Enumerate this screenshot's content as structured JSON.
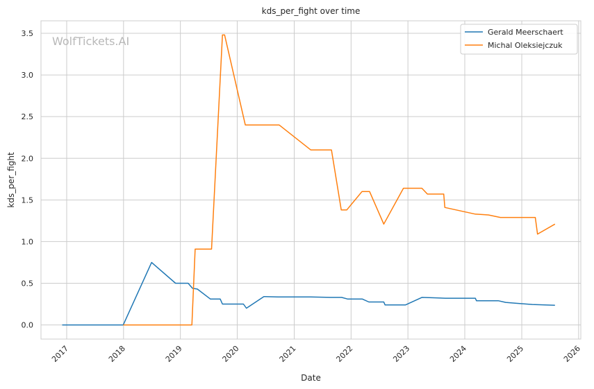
{
  "chart_data": {
    "type": "line",
    "title": "kds_per_fight over time",
    "xlabel": "Date",
    "ylabel": "kds_per_fight",
    "watermark": "WolfTickets.AI",
    "x_axis_type": "date",
    "xlim": [
      "2016-07-20",
      "2026-01-15"
    ],
    "ylim": [
      -0.17,
      3.65
    ],
    "x_ticks": [
      "2017-01-01",
      "2018-01-01",
      "2019-01-01",
      "2020-01-01",
      "2021-01-01",
      "2022-01-01",
      "2023-01-01",
      "2024-01-01",
      "2025-01-01",
      "2026-01-01"
    ],
    "x_tick_labels": [
      "2017",
      "2018",
      "2019",
      "2020",
      "2021",
      "2022",
      "2023",
      "2024",
      "2025",
      "2026"
    ],
    "x_tick_rotation": 45,
    "y_ticks": [
      0.0,
      0.5,
      1.0,
      1.5,
      2.0,
      2.5,
      3.0,
      3.5
    ],
    "y_tick_labels": [
      "0.0",
      "0.5",
      "1.0",
      "1.5",
      "2.0",
      "2.5",
      "3.0",
      "3.5"
    ],
    "grid": true,
    "legend_position": "top-right",
    "series": [
      {
        "name": "Gerald Meerschaert",
        "color": "#1f77b4",
        "points": [
          [
            "2016-12-03",
            0.0
          ],
          [
            "2017-12-30",
            0.0
          ],
          [
            "2018-06-30",
            0.75
          ],
          [
            "2018-12-01",
            0.5
          ],
          [
            "2019-02-20",
            0.5
          ],
          [
            "2019-03-20",
            0.44
          ],
          [
            "2019-04-20",
            0.43
          ],
          [
            "2019-07-13",
            0.31
          ],
          [
            "2019-09-14",
            0.31
          ],
          [
            "2019-09-28",
            0.25
          ],
          [
            "2020-02-10",
            0.25
          ],
          [
            "2020-02-29",
            0.2
          ],
          [
            "2020-06-20",
            0.34
          ],
          [
            "2020-09-20",
            0.335
          ],
          [
            "2021-04-17",
            0.335
          ],
          [
            "2021-08-20",
            0.33
          ],
          [
            "2021-11-01",
            0.33
          ],
          [
            "2021-12-11",
            0.31
          ],
          [
            "2022-03-15",
            0.31
          ],
          [
            "2022-04-25",
            0.275
          ],
          [
            "2022-07-30",
            0.275
          ],
          [
            "2022-08-07",
            0.24
          ],
          [
            "2022-12-17",
            0.24
          ],
          [
            "2023-04-01",
            0.33
          ],
          [
            "2023-08-30",
            0.32
          ],
          [
            "2024-03-09",
            0.32
          ],
          [
            "2024-03-16",
            0.29
          ],
          [
            "2024-08-03",
            0.29
          ],
          [
            "2024-09-20",
            0.27
          ],
          [
            "2024-11-20",
            0.26
          ],
          [
            "2025-03-10",
            0.245
          ],
          [
            "2025-08-02",
            0.235
          ]
        ]
      },
      {
        "name": "Michal Oleksiejczuk",
        "color": "#ff7f0e",
        "points": [
          [
            "2017-12-30",
            0.0
          ],
          [
            "2019-03-16",
            0.0
          ],
          [
            "2019-04-06",
            0.91
          ],
          [
            "2019-07-20",
            0.91
          ],
          [
            "2019-09-28",
            3.48
          ],
          [
            "2019-10-12",
            3.48
          ],
          [
            "2020-02-22",
            2.4
          ],
          [
            "2020-09-26",
            2.4
          ],
          [
            "2021-04-17",
            2.1
          ],
          [
            "2021-08-28",
            2.1
          ],
          [
            "2021-10-30",
            1.38
          ],
          [
            "2021-12-04",
            1.38
          ],
          [
            "2022-03-12",
            1.6
          ],
          [
            "2022-04-30",
            1.6
          ],
          [
            "2022-07-30",
            1.21
          ],
          [
            "2022-12-03",
            1.64
          ],
          [
            "2023-04-01",
            1.64
          ],
          [
            "2023-05-06",
            1.57
          ],
          [
            "2023-08-19",
            1.57
          ],
          [
            "2023-08-26",
            1.41
          ],
          [
            "2024-03-09",
            1.33
          ],
          [
            "2024-06-01",
            1.32
          ],
          [
            "2024-08-17",
            1.29
          ],
          [
            "2025-03-29",
            1.29
          ],
          [
            "2025-04-12",
            1.09
          ],
          [
            "2025-08-02",
            1.21
          ]
        ]
      }
    ]
  }
}
